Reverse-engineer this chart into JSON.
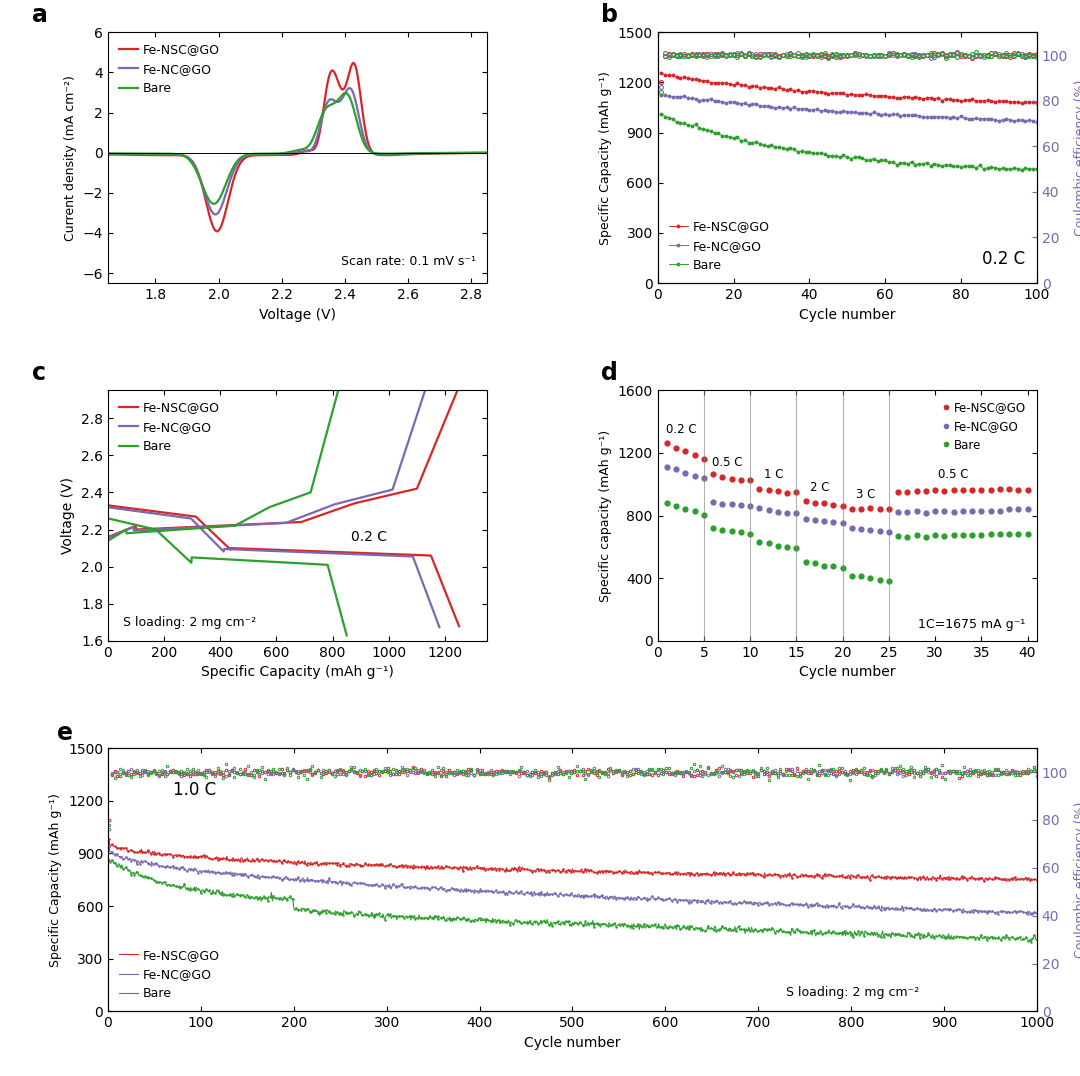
{
  "colors": {
    "red": "#d62728",
    "blue": "#7b68b0",
    "green": "#2ca02c"
  },
  "panel_a": {
    "xlabel": "Voltage (V)",
    "ylabel": "Current density (mA cm⁻²)",
    "xlim": [
      1.65,
      2.85
    ],
    "ylim": [
      -6.5,
      6.0
    ],
    "xticks": [
      1.8,
      2.0,
      2.2,
      2.4,
      2.6,
      2.8
    ],
    "yticks": [
      -6,
      -4,
      -2,
      0,
      2,
      4,
      6
    ],
    "annotation": "Scan rate: 0.1 mV s⁻¹"
  },
  "panel_b": {
    "xlabel": "Cycle number",
    "ylabel_left": "Specific Capacity (mAh g⁻¹)",
    "ylabel_right": "Coulombic efficiency (%)",
    "xlim": [
      0,
      100
    ],
    "ylim_left": [
      0,
      1500
    ],
    "ylim_right": [
      0,
      110
    ],
    "xticks": [
      0,
      20,
      40,
      60,
      80,
      100
    ],
    "yticks_left": [
      0,
      300,
      600,
      900,
      1200,
      1500
    ],
    "yticks_right": [
      0,
      20,
      40,
      60,
      80,
      100
    ],
    "annotation": "0.2 C"
  },
  "panel_c": {
    "xlabel": "Specific Capacity (mAh g⁻¹)",
    "ylabel": "Voltage (V)",
    "xlim": [
      0,
      1350
    ],
    "ylim": [
      1.6,
      2.95
    ],
    "xticks": [
      0,
      200,
      400,
      600,
      800,
      1000,
      1200
    ],
    "yticks": [
      1.6,
      1.8,
      2.0,
      2.2,
      2.4,
      2.6,
      2.8
    ],
    "annotation": "0.2 C",
    "annotation2": "S loading: 2 mg cm⁻²"
  },
  "panel_d": {
    "xlabel": "Cycle number",
    "ylabel": "Specific capacity (mAh g⁻¹)",
    "xlim": [
      0,
      41
    ],
    "ylim": [
      0,
      1600
    ],
    "xticks": [
      0,
      5,
      10,
      15,
      20,
      25,
      30,
      35,
      40
    ],
    "yticks": [
      0,
      400,
      800,
      1200,
      1600
    ],
    "annotation": "1C=1675 mA g⁻¹",
    "rate_labels": [
      "0.2 C",
      "0.5 C",
      "1 C",
      "2 C",
      "3 C",
      "0.5 C"
    ],
    "vlines": [
      5,
      10,
      15,
      20,
      25
    ]
  },
  "panel_e": {
    "xlabel": "Cycle number",
    "ylabel_left": "Specific Capacity (mAh g⁻¹)",
    "ylabel_right": "Coulombic efficiency (%)",
    "xlim": [
      0,
      1000
    ],
    "ylim_left": [
      0,
      1500
    ],
    "ylim_right": [
      0,
      110
    ],
    "xticks": [
      0,
      100,
      200,
      300,
      400,
      500,
      600,
      700,
      800,
      900,
      1000
    ],
    "yticks_left": [
      0,
      300,
      600,
      900,
      1200,
      1500
    ],
    "yticks_right": [
      0,
      20,
      40,
      60,
      80,
      100
    ],
    "annotation": "1.0 C",
    "annotation2": "S loading: 2 mg cm⁻²"
  }
}
